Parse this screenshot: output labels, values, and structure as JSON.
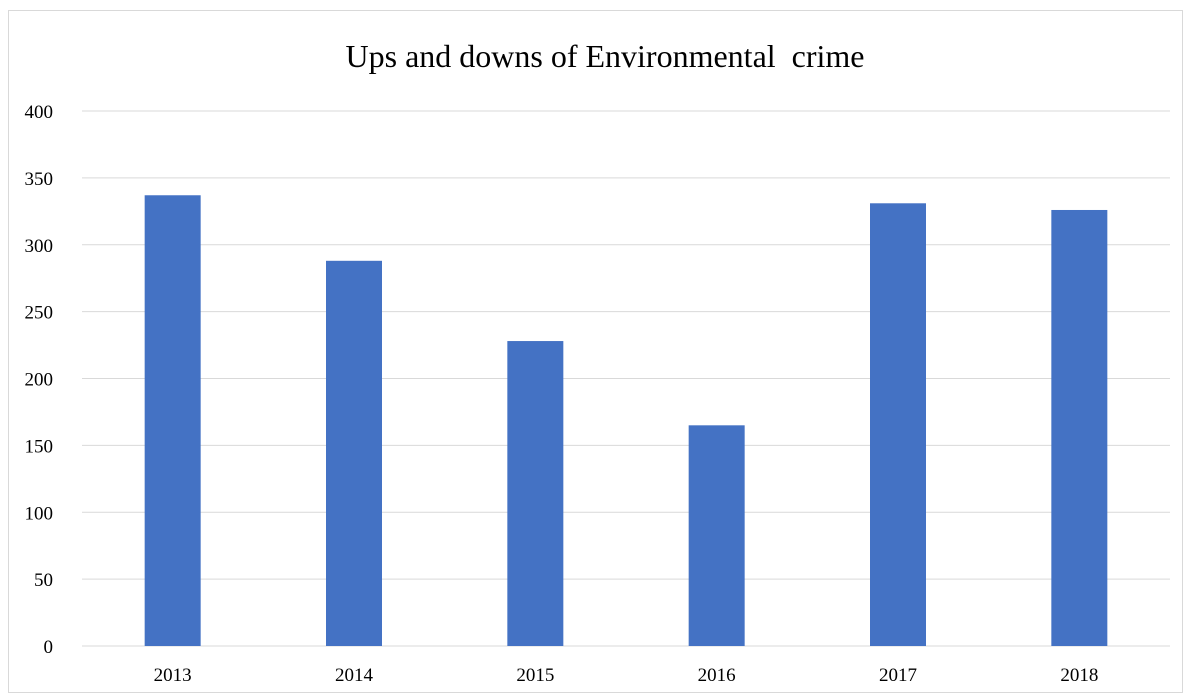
{
  "chart_data": {
    "type": "bar",
    "title": "Ups and downs of Environmental  crime",
    "xlabel": "",
    "ylabel": "",
    "categories": [
      "2013",
      "2014",
      "2015",
      "2016",
      "2017",
      "2018"
    ],
    "values": [
      337,
      288,
      228,
      165,
      331,
      326
    ],
    "ylim": [
      0,
      400
    ],
    "yticks": [
      0,
      50,
      100,
      150,
      200,
      250,
      300,
      350,
      400
    ],
    "grid": true,
    "legend": "none",
    "bar_color": "#4472c4",
    "grid_color": "#d9d9d9"
  }
}
